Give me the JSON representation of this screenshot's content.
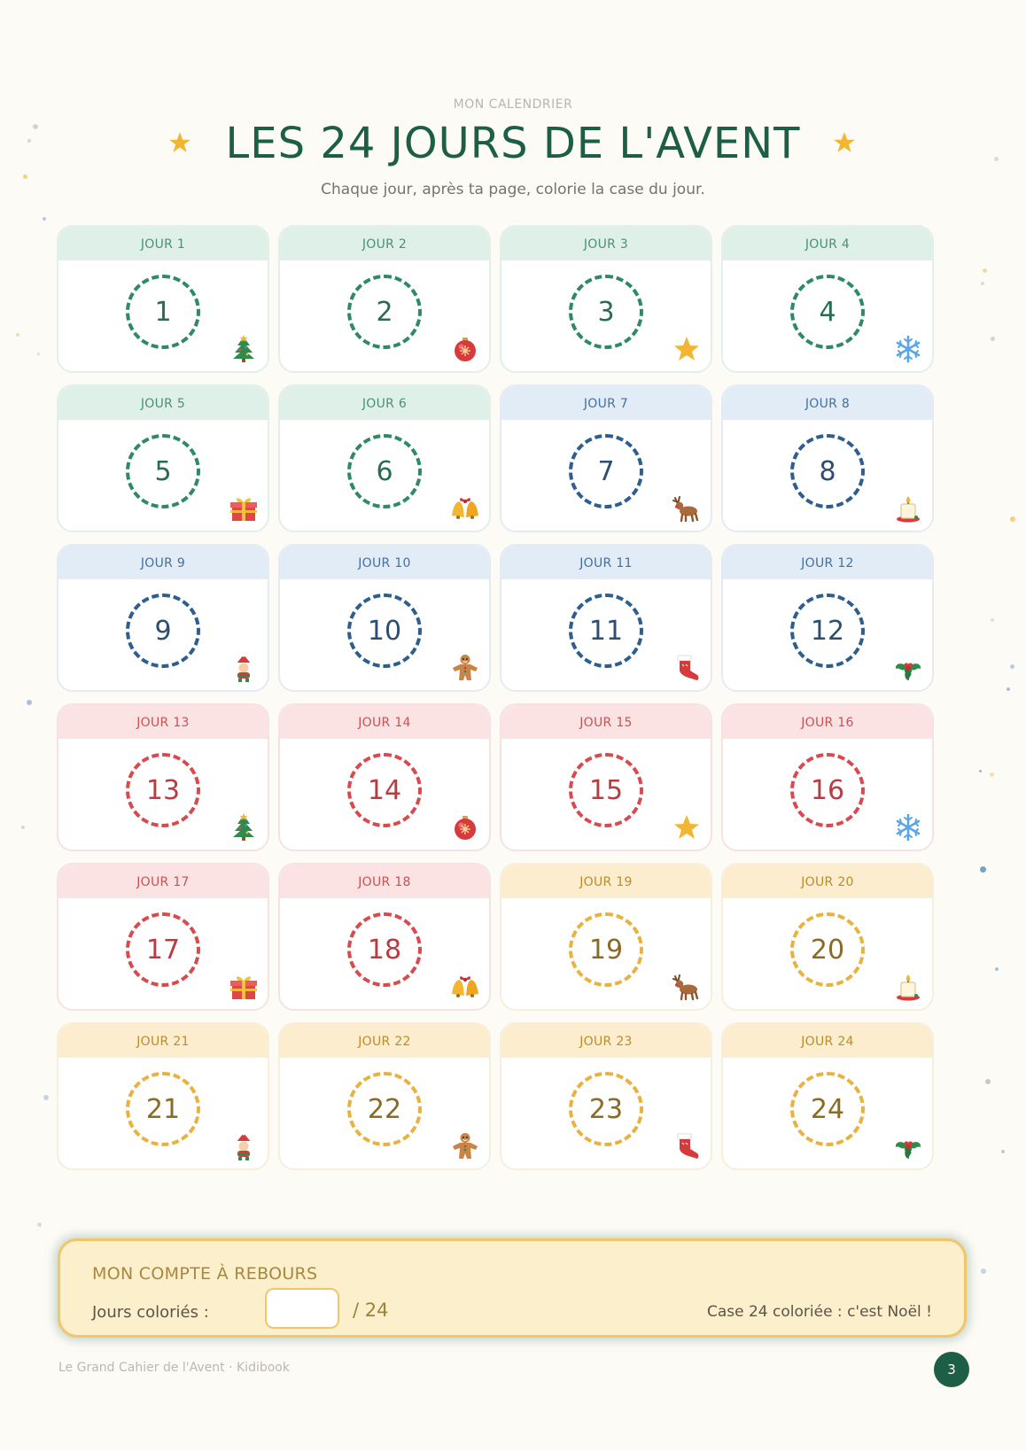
{
  "header": {
    "kicker": "MON CALENDRIER",
    "title": "LES 24 JOURS DE L'AVENT",
    "subtitle": "Chaque jour, après ta page, colorie la case du jour."
  },
  "days": [
    {
      "label": "JOUR 1",
      "number": "1",
      "theme": "green",
      "icon": "christmas-tree-icon"
    },
    {
      "label": "JOUR 2",
      "number": "2",
      "theme": "green",
      "icon": "ornament-ball-icon"
    },
    {
      "label": "JOUR 3",
      "number": "3",
      "theme": "green",
      "icon": "star-icon"
    },
    {
      "label": "JOUR 4",
      "number": "4",
      "theme": "green",
      "icon": "snowflake-icon"
    },
    {
      "label": "JOUR 5",
      "number": "5",
      "theme": "green",
      "icon": "gift-icon"
    },
    {
      "label": "JOUR 6",
      "number": "6",
      "theme": "green",
      "icon": "bells-icon"
    },
    {
      "label": "JOUR 7",
      "number": "7",
      "theme": "blue",
      "icon": "reindeer-icon"
    },
    {
      "label": "JOUR 8",
      "number": "8",
      "theme": "blue",
      "icon": "candle-icon"
    },
    {
      "label": "JOUR 9",
      "number": "9",
      "theme": "blue",
      "icon": "elf-icon"
    },
    {
      "label": "JOUR 10",
      "number": "10",
      "theme": "blue",
      "icon": "gingerbread-man-icon"
    },
    {
      "label": "JOUR 11",
      "number": "11",
      "theme": "blue",
      "icon": "stocking-icon"
    },
    {
      "label": "JOUR 12",
      "number": "12",
      "theme": "blue",
      "icon": "holly-icon"
    },
    {
      "label": "JOUR 13",
      "number": "13",
      "theme": "red",
      "icon": "christmas-tree-icon"
    },
    {
      "label": "JOUR 14",
      "number": "14",
      "theme": "red",
      "icon": "ornament-ball-icon"
    },
    {
      "label": "JOUR 15",
      "number": "15",
      "theme": "red",
      "icon": "star-icon"
    },
    {
      "label": "JOUR 16",
      "number": "16",
      "theme": "red",
      "icon": "snowflake-icon"
    },
    {
      "label": "JOUR 17",
      "number": "17",
      "theme": "red",
      "icon": "gift-icon"
    },
    {
      "label": "JOUR 18",
      "number": "18",
      "theme": "red",
      "icon": "bells-icon"
    },
    {
      "label": "JOUR 19",
      "number": "19",
      "theme": "yellow",
      "icon": "reindeer-icon"
    },
    {
      "label": "JOUR 20",
      "number": "20",
      "theme": "yellow",
      "icon": "candle-icon"
    },
    {
      "label": "JOUR 21",
      "number": "21",
      "theme": "yellow",
      "icon": "elf-icon"
    },
    {
      "label": "JOUR 22",
      "number": "22",
      "theme": "yellow",
      "icon": "gingerbread-man-icon"
    },
    {
      "label": "JOUR 23",
      "number": "23",
      "theme": "yellow",
      "icon": "stocking-icon"
    },
    {
      "label": "JOUR 24",
      "number": "24",
      "theme": "yellow",
      "icon": "holly-icon"
    }
  ],
  "counter": {
    "title": "MON COMPTE À REBOURS",
    "label": "Jours coloriés :",
    "input_value": "",
    "total": "/ 24",
    "note": "Case 24 coloriée : c'est Noël !"
  },
  "footer": {
    "text": "Le Grand Cahier de l'Avent · Kidibook",
    "page_number": "3"
  },
  "colors": {
    "title_green": "#1d5e47",
    "star_gold": "#f2b632",
    "green": "#2d8a64",
    "blue": "#2c5e8f",
    "red": "#d84a4d",
    "yellow": "#e9b23e"
  }
}
